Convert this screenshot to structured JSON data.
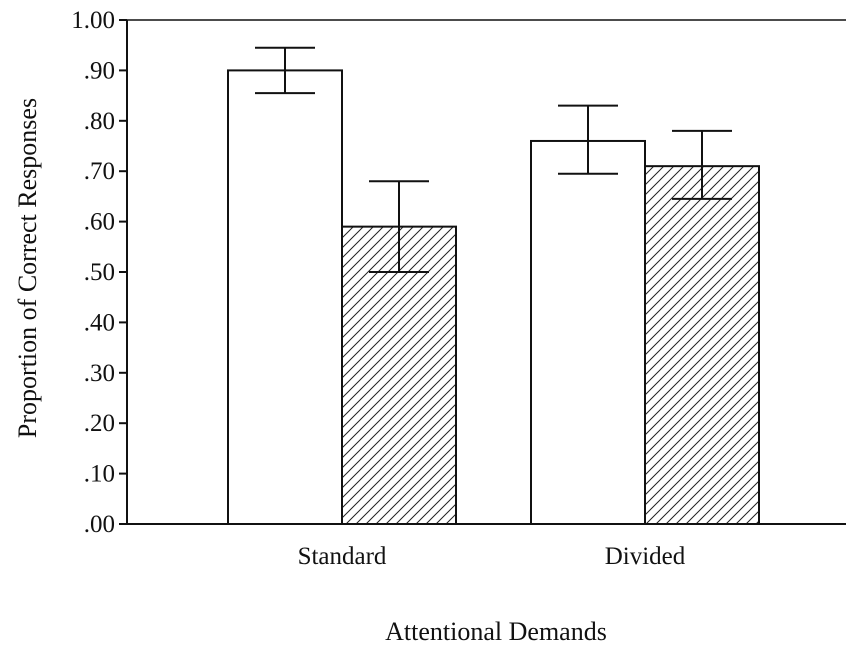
{
  "chart_data": {
    "type": "bar",
    "title": "",
    "xlabel": "Attentional Demands",
    "ylabel": "Proportion of Correct Responses",
    "categories": [
      "Standard",
      "Divided"
    ],
    "ylim": [
      0,
      1.0
    ],
    "yticks": [
      0.0,
      0.1,
      0.2,
      0.3,
      0.4,
      0.5,
      0.6,
      0.7,
      0.8,
      0.9,
      1.0
    ],
    "ytick_labels": [
      ".00",
      ".10",
      ".20",
      ".30",
      ".40",
      ".50",
      ".60",
      ".70",
      ".80",
      ".90",
      "1.00"
    ],
    "series": [
      {
        "fill": "white",
        "values": [
          0.9,
          0.76
        ],
        "error_low": [
          0.855,
          0.695
        ],
        "error_high": [
          0.945,
          0.83
        ]
      },
      {
        "fill": "diagonal-hatch",
        "values": [
          0.59,
          0.71
        ],
        "error_low": [
          0.5,
          0.645
        ],
        "error_high": [
          0.68,
          0.78
        ]
      }
    ],
    "grid": false,
    "legend": "none",
    "colors": {
      "stroke": "#111111",
      "background": "#ffffff"
    }
  }
}
